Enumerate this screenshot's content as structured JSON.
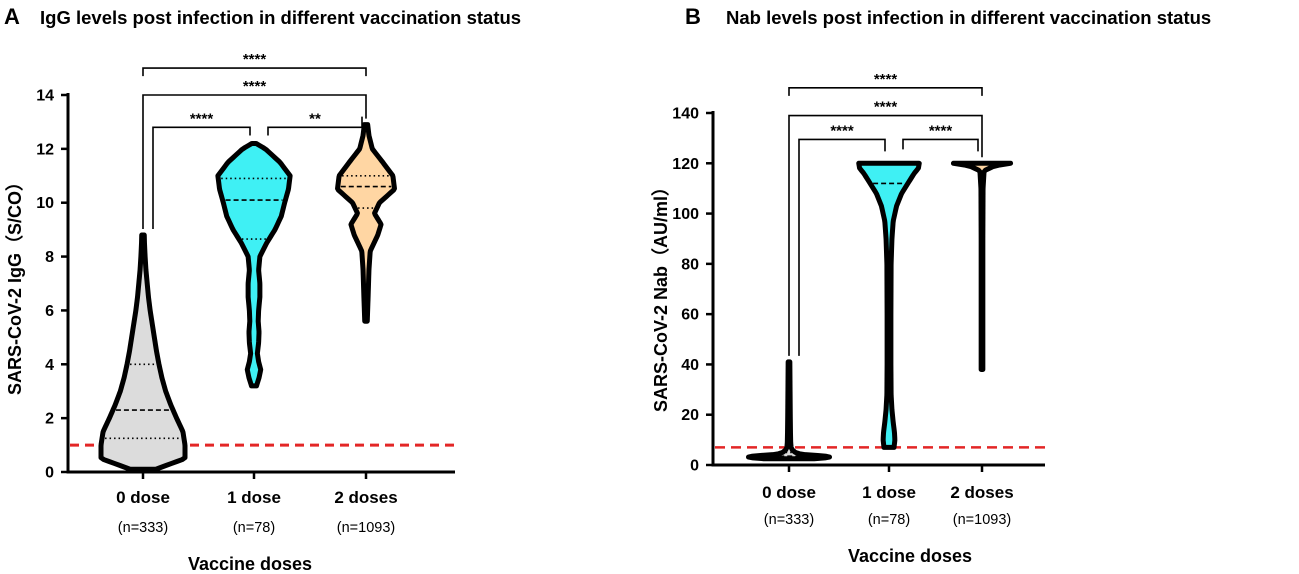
{
  "chart_data": [
    {
      "panel": "A",
      "type": "violin",
      "title": "IgG levels post infection in different vaccination status",
      "xlabel": "Vaccine doses",
      "ylabel": "SARS-CoV-2 IgG（S/CO）",
      "ylim": [
        0,
        14
      ],
      "yticks": [
        0,
        2,
        4,
        6,
        8,
        10,
        12,
        14
      ],
      "cutoff": 1,
      "cutoff_color": "#e32626",
      "groups": [
        {
          "label": "0 dose",
          "n_label": "(n=333)",
          "fill": "#dcdcdc",
          "min": 0.1,
          "max": 8.8,
          "q1": 1.25,
          "median": 2.3,
          "q3": 4.0,
          "profile": [
            [
              0.1,
              0.3
            ],
            [
              0.5,
              1.0
            ],
            [
              1.0,
              1.0
            ],
            [
              1.5,
              0.95
            ],
            [
              2.0,
              0.8
            ],
            [
              2.5,
              0.66
            ],
            [
              3.0,
              0.54
            ],
            [
              3.5,
              0.45
            ],
            [
              4.0,
              0.38
            ],
            [
              4.5,
              0.32
            ],
            [
              5.0,
              0.27
            ],
            [
              5.5,
              0.22
            ],
            [
              6.0,
              0.17
            ],
            [
              6.5,
              0.13
            ],
            [
              7.0,
              0.1
            ],
            [
              7.5,
              0.07
            ],
            [
              8.0,
              0.05
            ],
            [
              8.5,
              0.035
            ],
            [
              8.8,
              0.03
            ]
          ]
        },
        {
          "label": "1 dose",
          "n_label": "(n=78)",
          "fill": "#3ff0f4",
          "min": 3.2,
          "max": 12.2,
          "q1": 8.65,
          "median": 10.1,
          "q3": 10.9,
          "profile": [
            [
              3.2,
              0.06
            ],
            [
              3.5,
              0.12
            ],
            [
              3.8,
              0.16
            ],
            [
              4.1,
              0.11
            ],
            [
              4.4,
              0.08
            ],
            [
              4.8,
              0.11
            ],
            [
              5.2,
              0.12
            ],
            [
              5.6,
              0.1
            ],
            [
              6.0,
              0.11
            ],
            [
              6.5,
              0.14
            ],
            [
              7.0,
              0.14
            ],
            [
              7.5,
              0.11
            ],
            [
              8.0,
              0.14
            ],
            [
              8.5,
              0.3
            ],
            [
              9.0,
              0.5
            ],
            [
              9.5,
              0.65
            ],
            [
              10.0,
              0.73
            ],
            [
              10.5,
              0.82
            ],
            [
              11.0,
              0.86
            ],
            [
              11.5,
              0.62
            ],
            [
              12.0,
              0.27
            ],
            [
              12.2,
              0.05
            ]
          ]
        },
        {
          "label": "2 doses",
          "n_label": "(n=1093)",
          "fill": "#ffd6a3",
          "min": 5.6,
          "max": 12.9,
          "q1": 9.8,
          "median": 10.6,
          "q3": 11.0,
          "profile": [
            [
              5.6,
              0.03
            ],
            [
              6.5,
              0.05
            ],
            [
              7.5,
              0.07
            ],
            [
              8.2,
              0.1
            ],
            [
              8.8,
              0.28
            ],
            [
              9.2,
              0.36
            ],
            [
              9.6,
              0.2
            ],
            [
              10.0,
              0.32
            ],
            [
              10.5,
              0.68
            ],
            [
              11.0,
              0.64
            ],
            [
              11.5,
              0.4
            ],
            [
              12.0,
              0.15
            ],
            [
              12.5,
              0.07
            ],
            [
              12.9,
              0.04
            ]
          ]
        }
      ],
      "comparisons": [
        {
          "groups": [
            0,
            2
          ],
          "label": "****",
          "y": 15.0
        },
        {
          "groups": [
            0,
            2
          ],
          "label": "****",
          "y": 14.0
        },
        {
          "groups": [
            0,
            1
          ],
          "label": "****",
          "y": 12.8
        },
        {
          "groups": [
            1,
            2
          ],
          "label": "**",
          "y": 12.8
        }
      ]
    },
    {
      "panel": "B",
      "type": "violin",
      "title": "Nab levels post infection in different vaccination status",
      "xlabel": "Vaccine doses",
      "ylabel": "SARS-CoV-2 Nab（AU/ml）",
      "ylim": [
        0,
        140
      ],
      "yticks": [
        0,
        20,
        40,
        60,
        80,
        100,
        120,
        140
      ],
      "cutoff": 7,
      "cutoff_color": "#e32626",
      "groups": [
        {
          "label": "0 dose",
          "n_label": "(n=333)",
          "fill": "#dcdcdc",
          "min": 2.5,
          "max": 41,
          "q1": 3,
          "median": 3.5,
          "q3": 5,
          "profile": [
            [
              2.5,
              0.6
            ],
            [
              3.0,
              1.0
            ],
            [
              3.6,
              0.85
            ],
            [
              4.2,
              0.3
            ],
            [
              5.0,
              0.15
            ],
            [
              6.0,
              0.08
            ],
            [
              7.0,
              0.05
            ],
            [
              9.0,
              0.04
            ],
            [
              13.0,
              0.035
            ],
            [
              20.0,
              0.03
            ],
            [
              30.0,
              0.025
            ],
            [
              41.0,
              0.02
            ]
          ]
        },
        {
          "label": "1 dose",
          "n_label": "(n=78)",
          "fill": "#3ff0f4",
          "min": 7,
          "max": 120,
          "q1": 60,
          "median": 112,
          "q3": 120,
          "profile": [
            [
              7.0,
              0.12
            ],
            [
              10.0,
              0.14
            ],
            [
              13.0,
              0.13
            ],
            [
              17.0,
              0.1
            ],
            [
              22.0,
              0.07
            ],
            [
              28.0,
              0.05
            ],
            [
              40.0,
              0.045
            ],
            [
              60.0,
              0.045
            ],
            [
              80.0,
              0.05
            ],
            [
              90.0,
              0.07
            ],
            [
              97.0,
              0.1
            ],
            [
              103.0,
              0.18
            ],
            [
              108.0,
              0.3
            ],
            [
              112.0,
              0.45
            ],
            [
              116.0,
              0.6
            ],
            [
              118.0,
              0.7
            ],
            [
              120.0,
              0.72
            ]
          ]
        },
        {
          "label": "2 doses",
          "n_label": "(n=1093)",
          "fill": "#ffd6a3",
          "min": 38,
          "max": 120,
          "q1": 120,
          "median": 120,
          "q3": 120,
          "profile": [
            [
              38.0,
              0.02
            ],
            [
              60.0,
              0.02
            ],
            [
              90.0,
              0.02
            ],
            [
              110.0,
              0.025
            ],
            [
              117.0,
              0.05
            ],
            [
              119.0,
              0.3
            ],
            [
              120.0,
              0.68
            ]
          ]
        }
      ],
      "comparisons": [
        {
          "groups": [
            0,
            2
          ],
          "label": "****",
          "y": 150
        },
        {
          "groups": [
            0,
            2
          ],
          "label": "****",
          "y": 139
        },
        {
          "groups": [
            0,
            1
          ],
          "label": "****",
          "y": 129.5
        },
        {
          "groups": [
            1,
            2
          ],
          "label": "****",
          "y": 129.5
        }
      ]
    }
  ]
}
